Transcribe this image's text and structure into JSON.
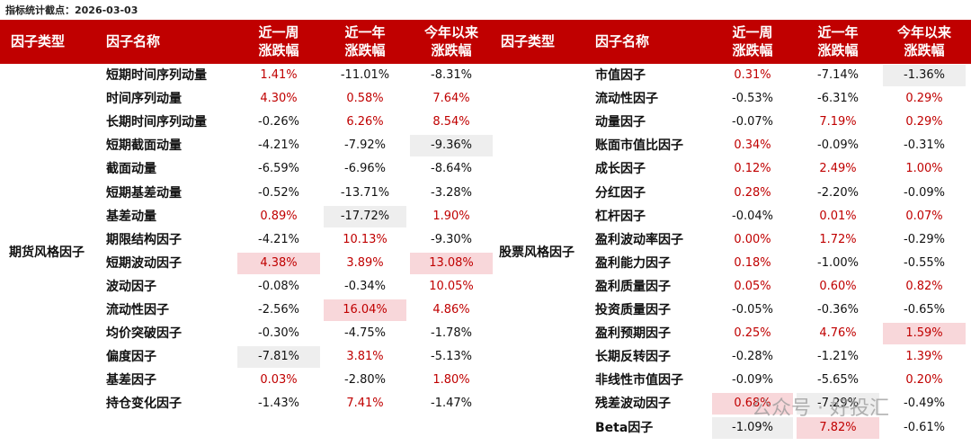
{
  "note": "指标统计截点：2026-03-03",
  "header": {
    "type": "因子类型",
    "name": "因子名称",
    "week": [
      "近一周",
      "涨跌幅"
    ],
    "year": [
      "近一年",
      "涨跌幅"
    ],
    "ytd": [
      "今年以来",
      "涨跌幅"
    ]
  },
  "left": {
    "type": "期货风格因子",
    "rows": [
      [
        "短期时间序列动量",
        "1.41%",
        "-11.01%",
        "-8.31%"
      ],
      [
        "时间序列动量",
        "4.30%",
        "0.58%",
        "7.64%"
      ],
      [
        "长期时间序列动量",
        "-0.26%",
        "6.26%",
        "8.54%"
      ],
      [
        "短期截面动量",
        "-4.21%",
        "-7.92%",
        "-9.36%"
      ],
      [
        "截面动量",
        "-6.59%",
        "-6.96%",
        "-8.64%"
      ],
      [
        "短期基差动量",
        "-0.52%",
        "-13.71%",
        "-3.28%"
      ],
      [
        "基差动量",
        "0.89%",
        "-17.72%",
        "1.90%"
      ],
      [
        "期限结构因子",
        "-4.21%",
        "10.13%",
        "-9.30%"
      ],
      [
        "短期波动因子",
        "4.38%",
        "3.89%",
        "13.08%"
      ],
      [
        "波动因子",
        "-0.08%",
        "-0.34%",
        "10.05%"
      ],
      [
        "流动性因子",
        "-2.56%",
        "16.04%",
        "4.86%"
      ],
      [
        "均价突破因子",
        "-0.30%",
        "-4.75%",
        "-1.78%"
      ],
      [
        "偏度因子",
        "-7.81%",
        "3.81%",
        "-5.13%"
      ],
      [
        "基差因子",
        "0.03%",
        "-2.80%",
        "1.80%"
      ],
      [
        "持仓变化因子",
        "-1.43%",
        "7.41%",
        "-1.47%"
      ]
    ]
  },
  "right": {
    "type": "股票风格因子",
    "rows": [
      [
        "市值因子",
        "0.31%",
        "-7.14%",
        "-1.36%"
      ],
      [
        "流动性因子",
        "-0.53%",
        "-6.31%",
        "0.29%"
      ],
      [
        "动量因子",
        "-0.07%",
        "7.19%",
        "0.29%"
      ],
      [
        "账面市值比因子",
        "0.34%",
        "-0.09%",
        "-0.31%"
      ],
      [
        "成长因子",
        "0.12%",
        "2.49%",
        "1.00%"
      ],
      [
        "分红因子",
        "0.28%",
        "-2.20%",
        "-0.09%"
      ],
      [
        "杠杆因子",
        "-0.04%",
        "0.01%",
        "0.07%"
      ],
      [
        "盈利波动率因子",
        "0.00%",
        "1.72%",
        "-0.29%"
      ],
      [
        "盈利能力因子",
        "0.18%",
        "-1.00%",
        "-0.55%"
      ],
      [
        "盈利质量因子",
        "0.05%",
        "0.60%",
        "0.82%"
      ],
      [
        "投资质量因子",
        "-0.05%",
        "-0.36%",
        "-0.65%"
      ],
      [
        "盈利预期因子",
        "0.25%",
        "4.76%",
        "1.59%"
      ],
      [
        "长期反转因子",
        "-0.28%",
        "-1.21%",
        "1.39%"
      ],
      [
        "非线性市值因子",
        "-0.09%",
        "-5.65%",
        "0.20%"
      ],
      [
        "残差波动因子",
        "0.68%",
        "-7.29%",
        "-0.49%"
      ],
      [
        "Beta因子",
        "-1.09%",
        "7.82%",
        "-0.61%"
      ]
    ]
  },
  "watermark": "公众号 · 好投汇"
}
